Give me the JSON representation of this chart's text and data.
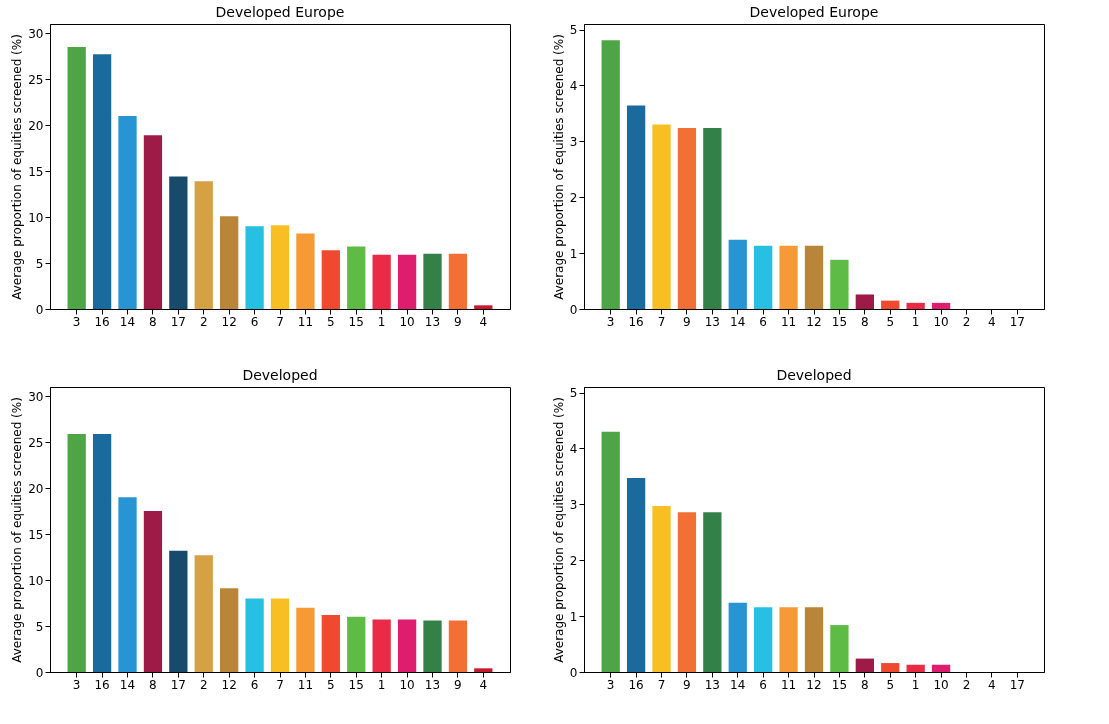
{
  "chart_data": [
    {
      "type": "bar",
      "title": "Developed Europe",
      "ylabel": "Average proportion of equities screened (%)",
      "categories": [
        "3",
        "16",
        "14",
        "8",
        "17",
        "2",
        "12",
        "6",
        "7",
        "11",
        "5",
        "15",
        "1",
        "10",
        "13",
        "9",
        "4"
      ],
      "values": [
        28.5,
        27.7,
        21,
        18.9,
        14.4,
        13.9,
        10.1,
        9,
        9.1,
        8.2,
        6.4,
        6.8,
        5.9,
        5.9,
        6,
        6,
        0.4
      ],
      "colors": [
        "#4ea546",
        "#1b6a9e",
        "#2795d3",
        "#9e1b47",
        "#174a6b",
        "#d6a044",
        "#b88539",
        "#27bfe2",
        "#f8bf24",
        "#f69a36",
        "#ef4a30",
        "#5dbb46",
        "#ea2b47",
        "#df1d6e",
        "#348049",
        "#f26f36",
        "#c5192d"
      ],
      "ylim": [
        0,
        31
      ],
      "yticks": [
        0,
        5,
        10,
        15,
        20,
        25,
        30
      ],
      "grid": false
    },
    {
      "type": "bar",
      "title": "Developed Europe",
      "ylabel": "Average proportion of equities screened (%)",
      "categories": [
        "3",
        "16",
        "7",
        "9",
        "13",
        "14",
        "6",
        "11",
        "12",
        "15",
        "8",
        "5",
        "1",
        "10",
        "2",
        "4",
        "17"
      ],
      "values": [
        4.81,
        3.64,
        3.3,
        3.24,
        3.24,
        1.24,
        1.13,
        1.13,
        1.13,
        0.88,
        0.26,
        0.15,
        0.11,
        0.11,
        0,
        0,
        0
      ],
      "colors": [
        "#4ea546",
        "#1b6a9e",
        "#f8bf24",
        "#f26f36",
        "#348049",
        "#2795d3",
        "#27bfe2",
        "#f69a36",
        "#b88539",
        "#5dbb46",
        "#9e1b47",
        "#ef4a30",
        "#ea2b47",
        "#df1d6e",
        "#d6a044",
        "#c5192d",
        "#174a6b"
      ],
      "ylim": [
        0,
        5.1
      ],
      "yticks": [
        0,
        1,
        2,
        3,
        4,
        5
      ],
      "grid": false
    },
    {
      "type": "bar",
      "title": "Developed",
      "ylabel": "Average proportion of equities screened (%)",
      "categories": [
        "3",
        "16",
        "14",
        "8",
        "17",
        "2",
        "12",
        "6",
        "7",
        "11",
        "5",
        "15",
        "1",
        "10",
        "13",
        "9",
        "4"
      ],
      "values": [
        25.9,
        25.9,
        19,
        17.5,
        13.2,
        12.7,
        9.1,
        8,
        8,
        7,
        6.2,
        6,
        5.7,
        5.7,
        5.6,
        5.6,
        0.4
      ],
      "colors": [
        "#4ea546",
        "#1b6a9e",
        "#2795d3",
        "#9e1b47",
        "#174a6b",
        "#d6a044",
        "#b88539",
        "#27bfe2",
        "#f8bf24",
        "#f69a36",
        "#ef4a30",
        "#5dbb46",
        "#ea2b47",
        "#df1d6e",
        "#348049",
        "#f26f36",
        "#c5192d"
      ],
      "ylim": [
        0,
        31
      ],
      "yticks": [
        0,
        5,
        10,
        15,
        20,
        25,
        30
      ],
      "grid": false
    },
    {
      "type": "bar",
      "title": "Developed",
      "ylabel": "Average proportion of equities screened (%)",
      "categories": [
        "3",
        "16",
        "7",
        "9",
        "13",
        "14",
        "6",
        "11",
        "12",
        "15",
        "8",
        "5",
        "1",
        "10",
        "2",
        "4",
        "17"
      ],
      "values": [
        4.3,
        3.47,
        2.97,
        2.86,
        2.86,
        1.24,
        1.16,
        1.16,
        1.16,
        0.84,
        0.24,
        0.16,
        0.13,
        0.13,
        0,
        0,
        0
      ],
      "colors": [
        "#4ea546",
        "#1b6a9e",
        "#f8bf24",
        "#f26f36",
        "#348049",
        "#2795d3",
        "#27bfe2",
        "#f69a36",
        "#b88539",
        "#5dbb46",
        "#9e1b47",
        "#ef4a30",
        "#ea2b47",
        "#df1d6e",
        "#d6a044",
        "#c5192d",
        "#174a6b"
      ],
      "ylim": [
        0,
        5.1
      ],
      "yticks": [
        0,
        1,
        2,
        3,
        4,
        5
      ],
      "grid": false
    }
  ]
}
